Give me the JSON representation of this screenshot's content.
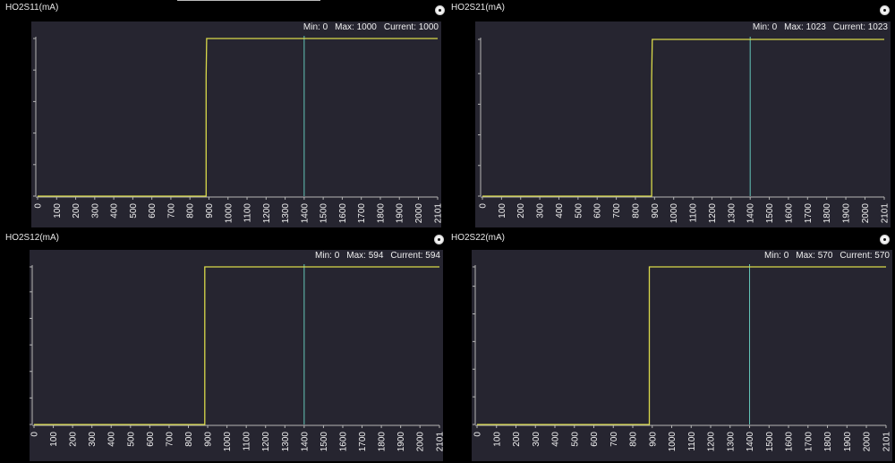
{
  "colors": {
    "background": "#000000",
    "plot_background": "#262530",
    "grid": "#2f2e39",
    "series": "#d9d94a",
    "cursor": "#63c6b8",
    "axis": "#b5b5b5",
    "tick_text": "#f0f0f0"
  },
  "icons": {
    "settings": "settings-icon"
  },
  "cursor_x": 1400,
  "charts": [
    {
      "title": "HO2S11(mA)",
      "stats": {
        "min": "Min: 0",
        "max": "Max: 1000",
        "current": "Current: 1000"
      },
      "chart_data": {
        "type": "line",
        "xlim": [
          0,
          2101
        ],
        "ylim": [
          0,
          1000
        ],
        "x_ticks": [
          0,
          100,
          200,
          300,
          400,
          500,
          600,
          700,
          800,
          900,
          1000,
          1100,
          1200,
          1300,
          1400,
          1500,
          1600,
          1700,
          1800,
          1900,
          2000,
          2101
        ],
        "y_ticks": [
          0,
          200,
          400,
          600,
          800,
          1000
        ],
        "points": [
          [
            0,
            0
          ],
          [
            885,
            0
          ],
          [
            885,
            760
          ],
          [
            888,
            1000
          ],
          [
            2101,
            1000
          ]
        ]
      }
    },
    {
      "title": "HO2S21(mA)",
      "stats": {
        "min": "Min: 0",
        "max": "Max: 1023",
        "current": "Current: 1023"
      },
      "chart_data": {
        "type": "line",
        "xlim": [
          0,
          2101
        ],
        "ylim": [
          0,
          1023
        ],
        "x_ticks": [
          0,
          100,
          200,
          300,
          400,
          500,
          600,
          700,
          800,
          900,
          1000,
          1100,
          1200,
          1300,
          1400,
          1500,
          1600,
          1700,
          1800,
          1900,
          2000,
          2101
        ],
        "y_ticks": [
          0,
          200,
          400,
          600,
          800,
          1023
        ],
        "points": [
          [
            0,
            0
          ],
          [
            885,
            0
          ],
          [
            885,
            770
          ],
          [
            888,
            1023
          ],
          [
            2101,
            1023
          ]
        ]
      }
    },
    {
      "title": "HO2S12(mA)",
      "stats": {
        "min": "Min: 0",
        "max": "Max: 594",
        "current": "Current: 594"
      },
      "chart_data": {
        "type": "line",
        "xlim": [
          0,
          2101
        ],
        "ylim": [
          0,
          594
        ],
        "x_ticks": [
          0,
          100,
          200,
          300,
          400,
          500,
          600,
          700,
          800,
          900,
          1000,
          1100,
          1200,
          1300,
          1400,
          1500,
          1600,
          1700,
          1800,
          1900,
          2000,
          2101
        ],
        "y_ticks": [
          0,
          100,
          200,
          300,
          400,
          500,
          594
        ],
        "points": [
          [
            0,
            0
          ],
          [
            885,
            0
          ],
          [
            885,
            594
          ],
          [
            2101,
            594
          ]
        ]
      }
    },
    {
      "title": "HO2S22(mA)",
      "stats": {
        "min": "Min: 0",
        "max": "Max: 570",
        "current": "Current: 570"
      },
      "chart_data": {
        "type": "line",
        "xlim": [
          0,
          2101
        ],
        "ylim": [
          0,
          570
        ],
        "x_ticks": [
          0,
          100,
          200,
          300,
          400,
          500,
          600,
          700,
          800,
          900,
          1000,
          1100,
          1200,
          1300,
          1400,
          1500,
          1600,
          1700,
          1800,
          1900,
          2000,
          2101
        ],
        "y_ticks": [
          0,
          100,
          200,
          300,
          400,
          500,
          570
        ],
        "points": [
          [
            0,
            0
          ],
          [
            885,
            0
          ],
          [
            885,
            570
          ],
          [
            2101,
            570
          ]
        ]
      }
    }
  ]
}
